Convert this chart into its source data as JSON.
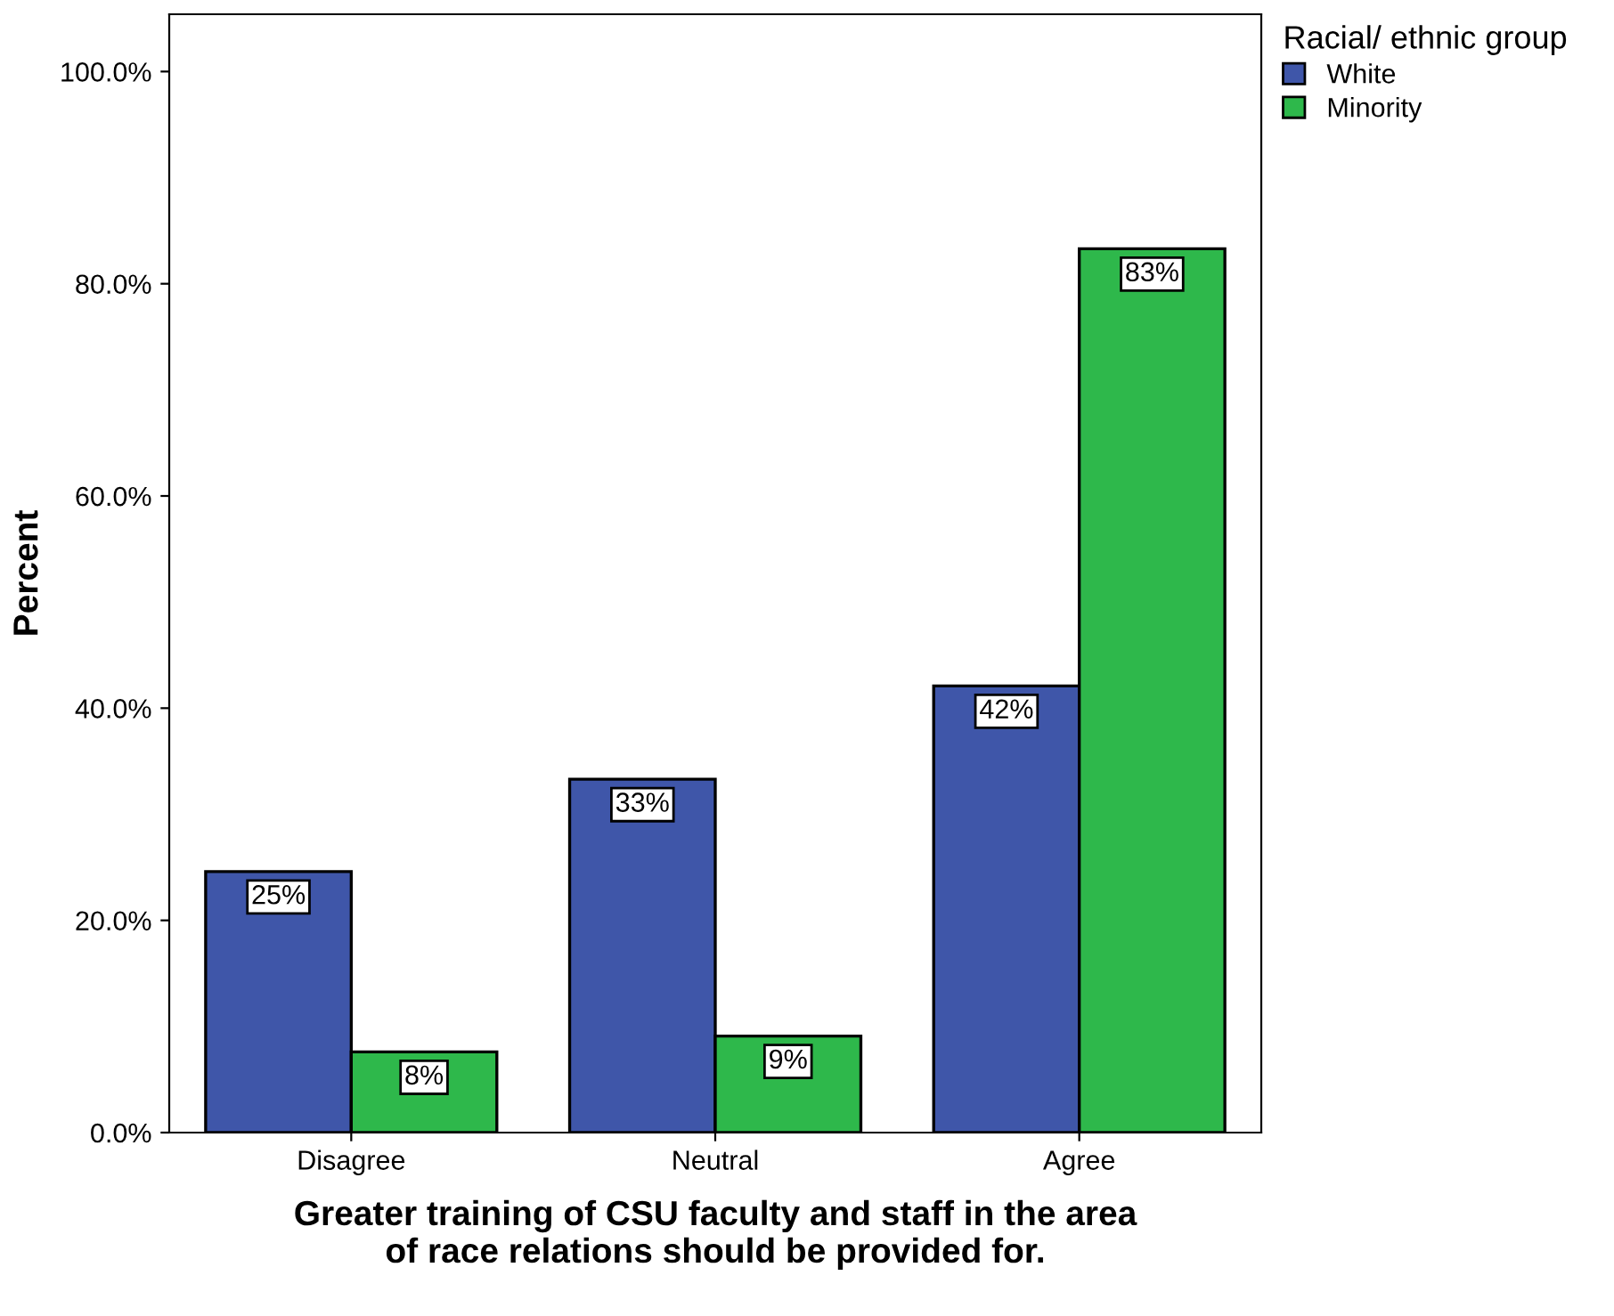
{
  "chart_data": {
    "type": "bar",
    "xlabel": "Greater training of CSU faculty and staff in the area\nof race relations should be provided for.",
    "ylabel": "Percent",
    "legend_title": "Racial/ ethnic group",
    "categories": [
      "Disagree",
      "Neutral",
      "Agree"
    ],
    "series": [
      {
        "name": "White",
        "color": "#3f56a9",
        "values": [
          24.6,
          33.3,
          42.1
        ],
        "value_labels": [
          "25%",
          "33%",
          "42%"
        ]
      },
      {
        "name": "Minority",
        "color": "#2eb84b",
        "values": [
          7.6,
          9.1,
          83.3
        ],
        "value_labels": [
          "8%",
          "9%",
          "83%"
        ]
      }
    ],
    "ylim": [
      0,
      105.4
    ],
    "yticks": [
      {
        "value": 0,
        "label": "0.0%"
      },
      {
        "value": 20,
        "label": "20.0%"
      },
      {
        "value": 40,
        "label": "40.0%"
      },
      {
        "value": 60,
        "label": "60.0%"
      },
      {
        "value": 80,
        "label": "80.0%"
      },
      {
        "value": 100,
        "label": "100.0%"
      }
    ],
    "legend": "top right",
    "grid": false
  }
}
